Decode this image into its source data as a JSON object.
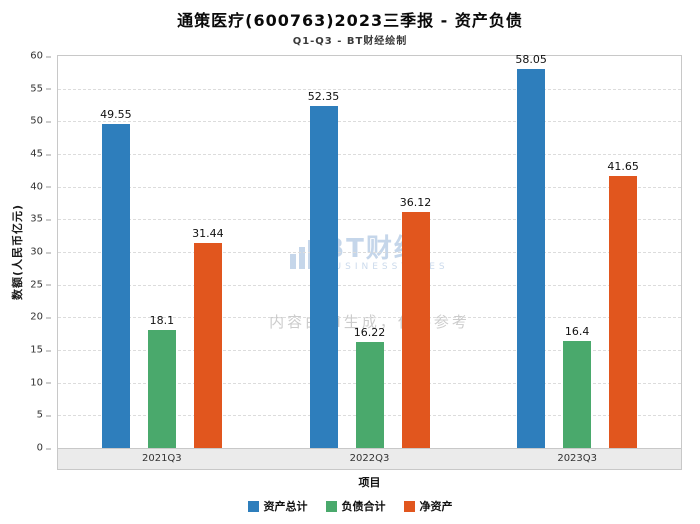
{
  "chart_data": {
    "type": "bar",
    "title": "通策医疗(600763)2023三季报 - 资产负债",
    "subtitle": "Q1-Q3 - BT财经绘制",
    "categories": [
      "2021Q3",
      "2022Q3",
      "2023Q3"
    ],
    "series": [
      {
        "name": "资产总计",
        "color": "#2E7EBC",
        "values": [
          49.55,
          52.35,
          58.05
        ]
      },
      {
        "name": "负债合计",
        "color": "#4AA96C",
        "values": [
          18.1,
          16.22,
          16.4
        ]
      },
      {
        "name": "净资产",
        "color": "#E1561E",
        "values": [
          31.44,
          36.12,
          41.65
        ]
      }
    ],
    "xlabel": "项目",
    "ylabel": "数额(人民币亿元)",
    "ylim": [
      0,
      60
    ],
    "ytick_step": 5,
    "grid": "horizontal-dashed",
    "legend_position": "bottom",
    "watermark": {
      "logo_text": "BT财经",
      "logo_subtext": "BUSINESSTIMES",
      "disclaimer": "内容由AI生成，仅供参考"
    }
  }
}
